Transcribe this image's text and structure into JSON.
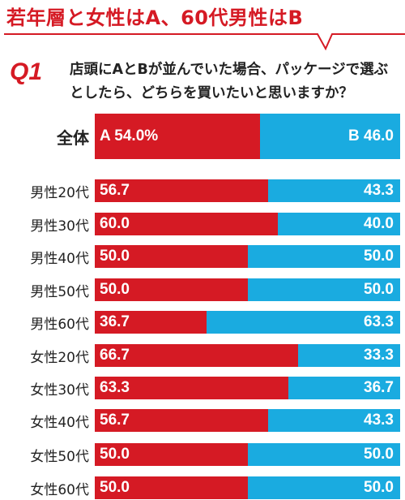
{
  "header": {
    "title": "若年層と女性はA、60代男性はB",
    "question_label": "Q1",
    "question_text": "店頭にAとBが並んでいた場合、パッケージで選ぶとしたら、どちらを買いたいと思いますか？"
  },
  "colors": {
    "a": "#d51a24",
    "b": "#1aabe0",
    "accent": "#d51a24"
  },
  "chart_data": {
    "type": "bar",
    "orientation": "horizontal",
    "stacked": true,
    "categories": [
      "全体",
      "男性20代",
      "男性30代",
      "男性40代",
      "男性50代",
      "男性60代",
      "女性20代",
      "女性30代",
      "女性40代",
      "女性50代",
      "女性60代"
    ],
    "series": [
      {
        "name": "A",
        "values": [
          54.0,
          56.7,
          60.0,
          50.0,
          50.0,
          36.7,
          66.7,
          63.3,
          56.7,
          50.0,
          50.0
        ]
      },
      {
        "name": "B",
        "values": [
          46.0,
          43.3,
          40.0,
          50.0,
          50.0,
          63.3,
          33.3,
          36.7,
          43.3,
          50.0,
          50.0
        ]
      }
    ],
    "labels_a": [
      "A 54.0%",
      "56.7",
      "60.0",
      "50.0",
      "50.0",
      "36.7",
      "66.7",
      "63.3",
      "56.7",
      "50.0",
      "50.0"
    ],
    "labels_b": [
      "B 46.0",
      "43.3",
      "40.0",
      "50.0",
      "50.0",
      "63.3",
      "33.3",
      "36.7",
      "43.3",
      "50.0",
      "50.0"
    ],
    "xlim": [
      0,
      100
    ],
    "title": "若年層と女性はA、60代男性はB"
  }
}
